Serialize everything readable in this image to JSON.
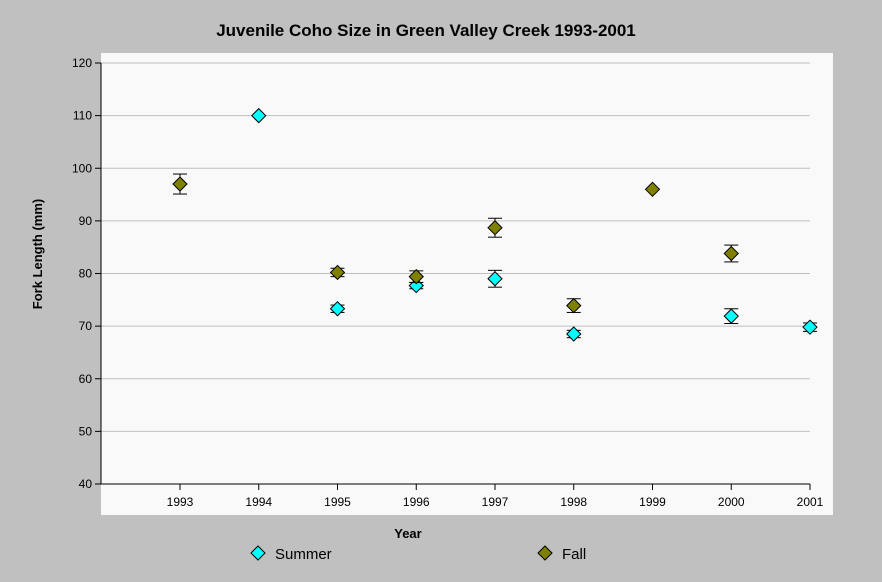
{
  "chart_data": {
    "type": "scatter",
    "title": "Juvenile Coho Size in Green Valley Creek 1993-2001",
    "xlabel": "Year",
    "ylabel": "Fork Length (mm)",
    "categories": [
      "1993",
      "1994",
      "1995",
      "1996",
      "1997",
      "1998",
      "1999",
      "2000",
      "2001"
    ],
    "ylim": [
      40,
      120
    ],
    "yticks": [
      40,
      50,
      60,
      70,
      80,
      90,
      100,
      110,
      120
    ],
    "grid": true,
    "legend": "bottom",
    "series": [
      {
        "name": "Summer",
        "color": "#00ffff",
        "points": [
          {
            "x": "1994",
            "y": 110,
            "err": 0
          },
          {
            "x": "1995",
            "y": 73.3,
            "err": 0.7
          },
          {
            "x": "1996",
            "y": 77.7,
            "err": 0.6
          },
          {
            "x": "1997",
            "y": 79,
            "err": 1.6
          },
          {
            "x": "1998",
            "y": 68.5,
            "err": 0.7
          },
          {
            "x": "2000",
            "y": 71.9,
            "err": 1.4
          },
          {
            "x": "2001",
            "y": 69.8,
            "err": 0.8
          }
        ]
      },
      {
        "name": "Fall",
        "color": "#808000",
        "points": [
          {
            "x": "1993",
            "y": 97,
            "err": 1.9
          },
          {
            "x": "1995",
            "y": 80.2,
            "err": 0.8
          },
          {
            "x": "1996",
            "y": 79.4,
            "err": 1.1
          },
          {
            "x": "1997",
            "y": 88.7,
            "err": 1.8
          },
          {
            "x": "1998",
            "y": 73.9,
            "err": 1.3
          },
          {
            "x": "1999",
            "y": 96,
            "err": 0
          },
          {
            "x": "2000",
            "y": 83.8,
            "err": 1.6
          }
        ]
      }
    ]
  }
}
